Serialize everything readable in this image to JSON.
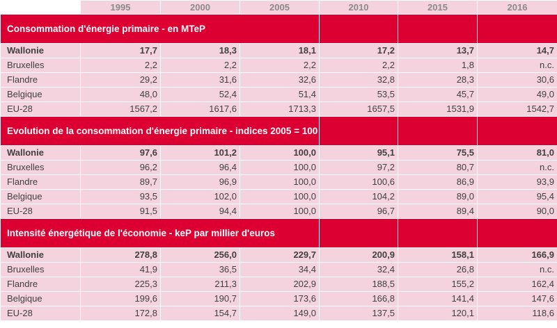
{
  "years": [
    "1995",
    "2000",
    "2005",
    "2010",
    "2015",
    "2016"
  ],
  "sections": [
    {
      "title": "Consommation d'énergie primaire - en MTeP",
      "rows": [
        {
          "name": "Wallonie",
          "bold": true,
          "values": [
            "17,7",
            "18,3",
            "18,1",
            "17,2",
            "13,7",
            "14,7"
          ]
        },
        {
          "name": "Bruxelles",
          "bold": false,
          "values": [
            "2,2",
            "2,2",
            "2,2",
            "2,2",
            "1,8",
            "n.c."
          ]
        },
        {
          "name": "Flandre",
          "bold": false,
          "values": [
            "29,2",
            "31,6",
            "32,6",
            "32,8",
            "28,3",
            "30,6"
          ]
        },
        {
          "name": "Belgique",
          "bold": false,
          "values": [
            "48,0",
            "52,4",
            "51,4",
            "53,5",
            "45,7",
            "49,0"
          ]
        },
        {
          "name": "EU-28",
          "bold": false,
          "values": [
            "1567,2",
            "1617,6",
            "1713,3",
            "1657,5",
            "1531,9",
            "1542,7"
          ]
        }
      ]
    },
    {
      "title": "Evolution de la consommation d'énergie primaire - indices 2005 = 100",
      "rows": [
        {
          "name": "Wallonie",
          "bold": true,
          "values": [
            "97,6",
            "101,2",
            "100,0",
            "95,1",
            "75,5",
            "81,0"
          ]
        },
        {
          "name": "Bruxelles",
          "bold": false,
          "values": [
            "96,2",
            "96,4",
            "100,0",
            "97,2",
            "80,7",
            "n.c."
          ]
        },
        {
          "name": "Flandre",
          "bold": false,
          "values": [
            "89,7",
            "96,9",
            "100,0",
            "100,6",
            "86,9",
            "93,9"
          ]
        },
        {
          "name": "Belgique",
          "bold": false,
          "values": [
            "93,5",
            "102,0",
            "100,0",
            "104,2",
            "89,0",
            "95,4"
          ]
        },
        {
          "name": "EU-28",
          "bold": false,
          "values": [
            "91,5",
            "94,4",
            "100,0",
            "96,7",
            "89,4",
            "90,0"
          ]
        }
      ]
    },
    {
      "title": "Intensité énergétique de l'économie - keP par millier d'euros",
      "rows": [
        {
          "name": "Wallonie",
          "bold": true,
          "values": [
            "278,8",
            "256,0",
            "229,7",
            "200,9",
            "158,1",
            "166,9"
          ]
        },
        {
          "name": "Bruxelles",
          "bold": false,
          "values": [
            "41,9",
            "36,5",
            "34,4",
            "32,4",
            "26,8",
            "n.c."
          ]
        },
        {
          "name": "Flandre",
          "bold": false,
          "values": [
            "225,3",
            "211,3",
            "202,9",
            "188,5",
            "155,2",
            "162,4"
          ]
        },
        {
          "name": "Belgique",
          "bold": false,
          "values": [
            "199,6",
            "190,7",
            "173,6",
            "166,8",
            "141,4",
            "147,6"
          ]
        },
        {
          "name": "EU-28",
          "bold": false,
          "values": [
            "172,8",
            "154,7",
            "149,0",
            "137,5",
            "120,1",
            "118,6"
          ]
        }
      ]
    }
  ]
}
